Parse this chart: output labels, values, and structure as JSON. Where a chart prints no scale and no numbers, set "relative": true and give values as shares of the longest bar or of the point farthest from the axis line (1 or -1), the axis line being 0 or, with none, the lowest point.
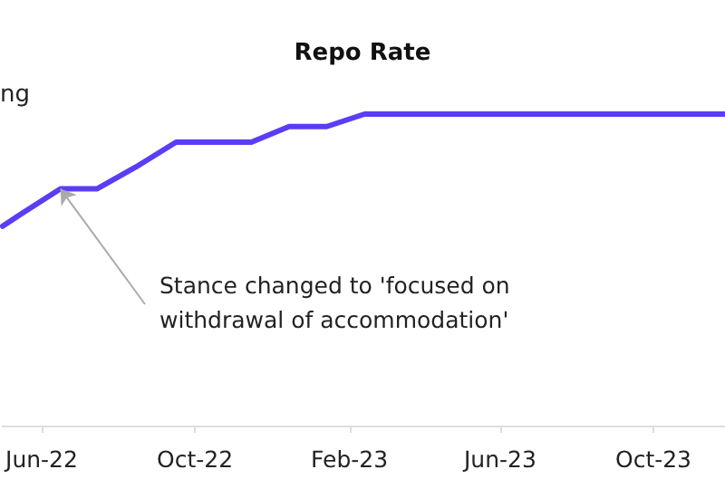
{
  "chart_data": {
    "type": "line",
    "title": "Repo Rate",
    "relative": true,
    "x": [
      "2022-05-01",
      "2022-05-16",
      "2022-06-16",
      "2022-07-15",
      "2022-08-15",
      "2022-09-16",
      "2022-11-15",
      "2022-12-15",
      "2023-01-14",
      "2023-02-13",
      "2023-11-27"
    ],
    "series": [
      {
        "color": "#5a3df5",
        "values": [
          0.64,
          0.68,
          0.76,
          0.76,
          0.83,
          0.91,
          0.91,
          0.96,
          0.96,
          1,
          1
        ]
      }
    ],
    "xlim": [
      "2022-05-01",
      "2023-11-27"
    ],
    "xticks": [
      {
        "value": "2022-06-01",
        "label": "Jun-22"
      },
      {
        "value": "2022-10-01",
        "label": "Oct-22"
      },
      {
        "value": "2023-02-01",
        "label": "Feb-23"
      },
      {
        "value": "2023-06-01",
        "label": "Jun-23"
      },
      {
        "value": "2023-10-01",
        "label": "Oct-23"
      }
    ],
    "annotations": [
      "ng",
      {
        "text": "Stance changed to 'focused on withdrawal of accommodation'",
        "x": "2022-06-16",
        "y": 0.76
      }
    ],
    "grid": false,
    "marker": "none",
    "line_style": "solid"
  }
}
